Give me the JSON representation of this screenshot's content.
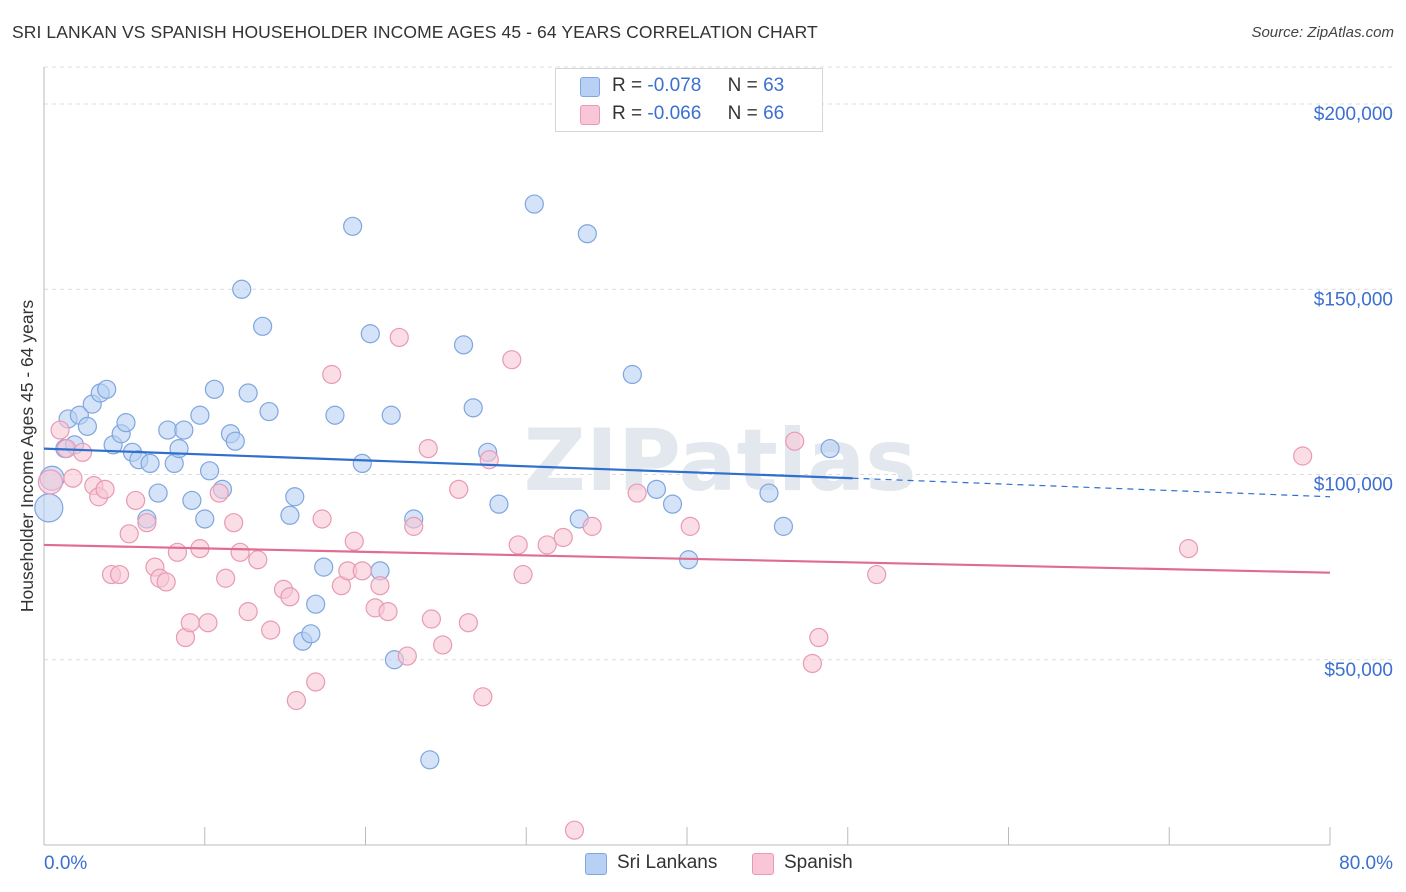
{
  "title": "SRI LANKAN VS SPANISH HOUSEHOLDER INCOME AGES 45 - 64 YEARS CORRELATION CHART",
  "source": "Source: ZipAtlas.com",
  "watermark": "ZIPatlas",
  "stats": {
    "r_label": "R =",
    "n_label": "N =",
    "rows": [
      {
        "series": "Sri Lankans",
        "r": "-0.078",
        "n": "63"
      },
      {
        "series": "Spanish",
        "r": "-0.066",
        "n": "66"
      }
    ]
  },
  "legend": [
    {
      "label": "Sri Lankans"
    },
    {
      "label": "Spanish"
    }
  ],
  "colors": {
    "blue_fill": "#b7d0f3",
    "blue_stroke": "#7fa6df",
    "blue_line": "#2f6fce",
    "pink_fill": "#f8c6d6",
    "pink_stroke": "#e89ab4",
    "pink_line": "#e06b93",
    "axis_text": "#3b6fd0",
    "grid": "#dcdcdc"
  },
  "chart_data": {
    "type": "scatter",
    "title": "SRI LANKAN VS SPANISH HOUSEHOLDER INCOME AGES 45 - 64 YEARS CORRELATION CHART",
    "xlabel": "",
    "ylabel": "Householder Income Ages 45 - 64 years",
    "xlim": [
      0,
      80
    ],
    "ylim": [
      0,
      210000
    ],
    "x_tick_labels": [
      "0.0%",
      "80.0%"
    ],
    "y_ticks": [
      50000,
      100000,
      150000,
      200000
    ],
    "y_tick_labels": [
      "$50,000",
      "$100,000",
      "$150,000",
      "$200,000"
    ],
    "grid": true,
    "legend_position": "bottom-center",
    "series": [
      {
        "name": "Sri Lankans",
        "color": "#b7d0f3",
        "trend": {
          "x": [
            0,
            50.3
          ],
          "y": [
            107000,
            99000
          ],
          "dashed_to": [
            80,
            94000
          ]
        },
        "points": [
          [
            0.3,
            91000,
            14
          ],
          [
            0.5,
            99000,
            12
          ],
          [
            1.3,
            107000,
            9
          ],
          [
            1.5,
            115000,
            9
          ],
          [
            1.9,
            108000,
            9
          ],
          [
            2.2,
            116000,
            9
          ],
          [
            2.7,
            113000,
            9
          ],
          [
            3.0,
            119000,
            9
          ],
          [
            3.5,
            122000,
            9
          ],
          [
            3.9,
            123000,
            9
          ],
          [
            4.3,
            108000,
            9
          ],
          [
            4.8,
            111000,
            9
          ],
          [
            5.1,
            114000,
            9
          ],
          [
            5.5,
            106000,
            9
          ],
          [
            5.9,
            104000,
            9
          ],
          [
            6.4,
            88000,
            9
          ],
          [
            6.6,
            103000,
            9
          ],
          [
            7.1,
            95000,
            9
          ],
          [
            7.7,
            112000,
            9
          ],
          [
            8.1,
            103000,
            9
          ],
          [
            8.4,
            107000,
            9
          ],
          [
            8.7,
            112000,
            9
          ],
          [
            9.2,
            93000,
            9
          ],
          [
            9.7,
            116000,
            9
          ],
          [
            10.0,
            88000,
            9
          ],
          [
            10.3,
            101000,
            9
          ],
          [
            10.6,
            123000,
            9
          ],
          [
            11.1,
            96000,
            9
          ],
          [
            11.6,
            111000,
            9
          ],
          [
            11.9,
            109000,
            9
          ],
          [
            12.3,
            150000,
            9
          ],
          [
            12.7,
            122000,
            9
          ],
          [
            13.6,
            140000,
            9
          ],
          [
            14.0,
            117000,
            9
          ],
          [
            15.3,
            89000,
            9
          ],
          [
            15.6,
            94000,
            9
          ],
          [
            16.1,
            55000,
            9
          ],
          [
            16.6,
            57000,
            9
          ],
          [
            16.9,
            65000,
            9
          ],
          [
            17.4,
            75000,
            9
          ],
          [
            18.1,
            116000,
            9
          ],
          [
            19.2,
            167000,
            9
          ],
          [
            19.8,
            103000,
            9
          ],
          [
            20.3,
            138000,
            9
          ],
          [
            20.9,
            74000,
            9
          ],
          [
            21.6,
            116000,
            9
          ],
          [
            21.8,
            50000,
            9
          ],
          [
            23.0,
            88000,
            9
          ],
          [
            24.0,
            23000,
            9
          ],
          [
            26.1,
            135000,
            9
          ],
          [
            26.7,
            118000,
            9
          ],
          [
            27.6,
            106000,
            9
          ],
          [
            28.3,
            92000,
            9
          ],
          [
            30.5,
            173000,
            9
          ],
          [
            33.3,
            88000,
            9
          ],
          [
            33.8,
            165000,
            9
          ],
          [
            36.6,
            127000,
            9
          ],
          [
            38.1,
            96000,
            9
          ],
          [
            39.1,
            92000,
            9
          ],
          [
            40.1,
            77000,
            9
          ],
          [
            45.1,
            95000,
            9
          ],
          [
            46.0,
            86000,
            9
          ],
          [
            48.9,
            107000,
            9
          ]
        ]
      },
      {
        "name": "Spanish",
        "color": "#f8c6d6",
        "trend": {
          "x": [
            0,
            80
          ],
          "y": [
            81000,
            73500
          ]
        },
        "points": [
          [
            0.4,
            98000,
            12
          ],
          [
            1.0,
            112000,
            9
          ],
          [
            1.4,
            107000,
            9
          ],
          [
            1.8,
            99000,
            9
          ],
          [
            2.4,
            106000,
            9
          ],
          [
            3.1,
            97000,
            9
          ],
          [
            3.4,
            94000,
            9
          ],
          [
            3.8,
            96000,
            9
          ],
          [
            4.2,
            73000,
            9
          ],
          [
            4.7,
            73000,
            9
          ],
          [
            5.3,
            84000,
            9
          ],
          [
            5.7,
            93000,
            9
          ],
          [
            6.4,
            87000,
            9
          ],
          [
            6.9,
            75000,
            9
          ],
          [
            7.2,
            72000,
            9
          ],
          [
            7.6,
            71000,
            9
          ],
          [
            8.3,
            79000,
            9
          ],
          [
            8.8,
            56000,
            9
          ],
          [
            9.1,
            60000,
            9
          ],
          [
            9.7,
            80000,
            9
          ],
          [
            10.2,
            60000,
            9
          ],
          [
            10.9,
            95000,
            9
          ],
          [
            11.3,
            72000,
            9
          ],
          [
            11.8,
            87000,
            9
          ],
          [
            12.2,
            79000,
            9
          ],
          [
            12.7,
            63000,
            9
          ],
          [
            13.3,
            77000,
            9
          ],
          [
            14.1,
            58000,
            9
          ],
          [
            14.9,
            69000,
            9
          ],
          [
            15.3,
            67000,
            9
          ],
          [
            15.7,
            39000,
            9
          ],
          [
            16.9,
            44000,
            9
          ],
          [
            17.3,
            88000,
            9
          ],
          [
            17.9,
            127000,
            9
          ],
          [
            18.5,
            70000,
            9
          ],
          [
            18.9,
            74000,
            9
          ],
          [
            19.3,
            82000,
            9
          ],
          [
            19.8,
            74000,
            9
          ],
          [
            20.6,
            64000,
            9
          ],
          [
            20.9,
            70000,
            9
          ],
          [
            21.4,
            63000,
            9
          ],
          [
            22.1,
            137000,
            9
          ],
          [
            22.6,
            51000,
            9
          ],
          [
            23.0,
            86000,
            9
          ],
          [
            23.9,
            107000,
            9
          ],
          [
            24.1,
            61000,
            9
          ],
          [
            24.8,
            54000,
            9
          ],
          [
            25.8,
            96000,
            9
          ],
          [
            26.4,
            60000,
            9
          ],
          [
            27.3,
            40000,
            9
          ],
          [
            27.7,
            104000,
            9
          ],
          [
            29.1,
            131000,
            9
          ],
          [
            29.5,
            81000,
            9
          ],
          [
            29.8,
            73000,
            9
          ],
          [
            31.3,
            81000,
            9
          ],
          [
            32.3,
            83000,
            9
          ],
          [
            33.0,
            4000,
            9
          ],
          [
            34.1,
            86000,
            9
          ],
          [
            36.9,
            95000,
            9
          ],
          [
            40.2,
            86000,
            9
          ],
          [
            46.7,
            109000,
            9
          ],
          [
            47.8,
            49000,
            9
          ],
          [
            48.2,
            56000,
            9
          ],
          [
            51.8,
            73000,
            9
          ],
          [
            71.2,
            80000,
            9
          ],
          [
            78.3,
            105000,
            9
          ]
        ]
      }
    ]
  }
}
